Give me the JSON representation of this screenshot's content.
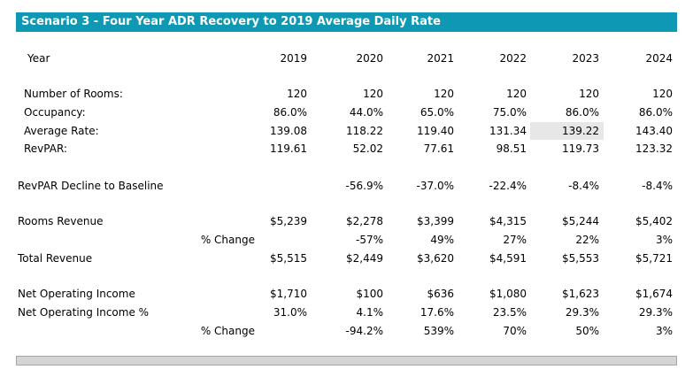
{
  "title": "Scenario 3 - Four Year ADR Recovery to 2019 Average Daily Rate",
  "header": {
    "label": "Year",
    "years": [
      "2019",
      "2020",
      "2021",
      "2022",
      "2023",
      "2024"
    ]
  },
  "rows": {
    "rooms": {
      "label": "Number of Rooms:",
      "values": [
        "120",
        "120",
        "120",
        "120",
        "120",
        "120"
      ]
    },
    "occupancy": {
      "label": "Occupancy:",
      "values": [
        "86.0%",
        "44.0%",
        "65.0%",
        "75.0%",
        "86.0%",
        "86.0%"
      ]
    },
    "average_rate": {
      "label": "Average Rate:",
      "values": [
        "139.08",
        "118.22",
        "119.40",
        "131.34",
        "139.22",
        "143.40"
      ]
    },
    "revpar": {
      "label": "RevPAR:",
      "values": [
        "119.61",
        "52.02",
        "77.61",
        "98.51",
        "119.73",
        "123.32"
      ]
    },
    "revpar_decline": {
      "label": "RevPAR Decline to Baseline",
      "values": [
        "",
        "-56.9%",
        "-37.0%",
        "-22.4%",
        "-8.4%",
        "-8.4%"
      ]
    },
    "rooms_revenue": {
      "label": "Rooms Revenue",
      "values": [
        "$5,239",
        "$2,278",
        "$3,399",
        "$4,315",
        "$5,244",
        "$5,402"
      ]
    },
    "rooms_revenue_change": {
      "label": "% Change",
      "values": [
        "",
        "-57%",
        "49%",
        "27%",
        "22%",
        "3%"
      ]
    },
    "total_revenue": {
      "label": "Total Revenue",
      "values": [
        "$5,515",
        "$2,449",
        "$3,620",
        "$4,591",
        "$5,553",
        "$5,721"
      ]
    },
    "noi": {
      "label": "Net Operating Income",
      "values": [
        "$1,710",
        "$100",
        "$636",
        "$1,080",
        "$1,623",
        "$1,674"
      ]
    },
    "noi_pct": {
      "label": "Net Operating Income %",
      "values": [
        "31.0%",
        "4.1%",
        "17.6%",
        "23.5%",
        "29.3%",
        "29.3%"
      ]
    },
    "noi_change": {
      "label": "% Change",
      "values": [
        "",
        "-94.2%",
        "539%",
        "70%",
        "50%",
        "3%"
      ]
    }
  }
}
